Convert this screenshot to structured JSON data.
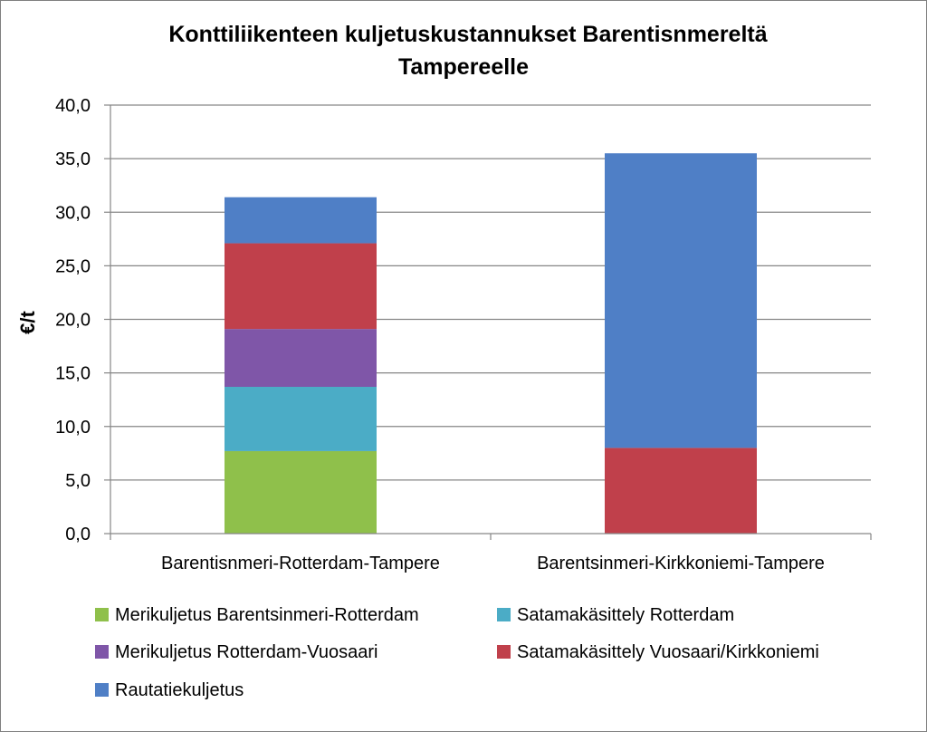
{
  "chart_data": {
    "type": "bar",
    "stacked": true,
    "title_lines": [
      "Konttiliikenteen kuljetuskustannukset Barentisnmereltä",
      "Tampereelle"
    ],
    "xlabel": "",
    "ylabel": "€/t",
    "ylim": [
      0,
      40
    ],
    "yticks": [
      "0,0",
      "5,0",
      "10,0",
      "15,0",
      "20,0",
      "25,0",
      "30,0",
      "35,0",
      "40,0"
    ],
    "grid": true,
    "legend_position": "bottom",
    "categories": [
      "Barentisnmeri-Rotterdam-Tampere",
      "Barentsinmeri-Kirkkoniemi-Tampere"
    ],
    "series": [
      {
        "name": "Merikuljetus Barentsinmeri-Rotterdam",
        "color": "#8fc04b",
        "values": [
          7.7,
          0
        ]
      },
      {
        "name": "Satamakäsittely Rotterdam",
        "color": "#4bacc6",
        "values": [
          6.0,
          0
        ]
      },
      {
        "name": "Merikuljetus Rotterdam-Vuosaari",
        "color": "#7f56a8",
        "values": [
          5.4,
          0
        ]
      },
      {
        "name": "Satamakäsittely Vuosaari/Kirkkoniemi",
        "color": "#c0404b",
        "values": [
          8.0,
          8.0
        ]
      },
      {
        "name": "Rautatiekuljetus",
        "color": "#4f7fc6",
        "values": [
          4.3,
          27.5
        ]
      }
    ]
  }
}
